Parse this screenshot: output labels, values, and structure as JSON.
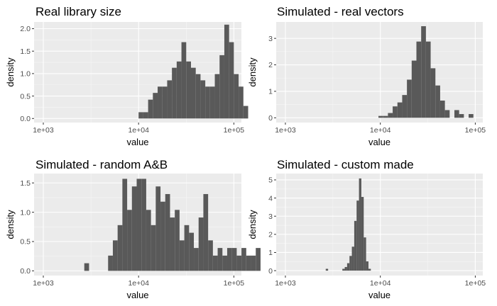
{
  "chart_data": [
    {
      "type": "histogram",
      "title": "Real library size",
      "xlabel": "value",
      "ylabel": "density",
      "x_scale": "log10",
      "xlim": [
        800,
        120000
      ],
      "x_ticks": [
        1000,
        10000,
        100000
      ],
      "x_tick_labels": [
        "1e+03",
        "1e+04",
        "1e+05"
      ],
      "ylim": [
        -0.09,
        2.15
      ],
      "y_ticks": [
        0.0,
        0.5,
        1.0,
        1.5,
        2.0
      ],
      "y_tick_labels": [
        "0.0",
        "0.5",
        "1.0",
        "1.5",
        "2.0"
      ],
      "bins": {
        "log10_start": 4.0,
        "log10_width": 0.05
      },
      "values": [
        0.14,
        0.14,
        0.42,
        0.57,
        0.71,
        0.71,
        0.85,
        1.13,
        1.27,
        1.7,
        1.27,
        1.13,
        0.99,
        0.85,
        0.71,
        0.71,
        0.99,
        1.41,
        2.09,
        1.7,
        0.99,
        0.71,
        0.28,
        0.0
      ]
    },
    {
      "type": "histogram",
      "title": "Simulated - real vectors",
      "xlabel": "value",
      "ylabel": "density",
      "x_scale": "log10",
      "xlim": [
        800,
        120000
      ],
      "x_ticks": [
        1000,
        10000,
        100000
      ],
      "x_tick_labels": [
        "1e+03",
        "1e+04",
        "1e+05"
      ],
      "ylim": [
        -0.18,
        3.62
      ],
      "y_ticks": [
        0,
        1,
        2,
        3
      ],
      "y_tick_labels": [
        "0",
        "1",
        "2",
        "3"
      ],
      "bins": {
        "log10_start": 3.98,
        "log10_width": 0.05
      },
      "values": [
        0.07,
        0.07,
        0.18,
        0.43,
        0.58,
        0.86,
        1.44,
        2.16,
        2.88,
        3.46,
        2.88,
        1.87,
        1.22,
        0.65,
        0.29,
        0.0,
        0.29,
        0.14,
        0.0,
        0.14
      ]
    },
    {
      "type": "histogram",
      "title": "Simulated - random A&B",
      "xlabel": "value",
      "ylabel": "density",
      "x_scale": "log10",
      "xlim": [
        800,
        120000
      ],
      "x_ticks": [
        1000,
        10000,
        100000
      ],
      "x_tick_labels": [
        "1e+03",
        "1e+04",
        "1e+05"
      ],
      "ylim": [
        -0.08,
        1.66
      ],
      "y_ticks": [
        0.0,
        0.5,
        1.0,
        1.5
      ],
      "y_tick_labels": [
        "0.0",
        "0.5",
        "1.0",
        "1.5"
      ],
      "bins": {
        "log10_start": 3.43,
        "log10_width": 0.05
      },
      "values": [
        0.13,
        0.0,
        0.0,
        0.0,
        0.0,
        0.26,
        0.52,
        0.78,
        1.57,
        1.04,
        1.44,
        1.57,
        1.57,
        1.04,
        0.78,
        1.44,
        1.18,
        1.31,
        0.91,
        1.04,
        0.52,
        0.78,
        0.65,
        0.39,
        0.91,
        1.31,
        0.52,
        0.26,
        0.39,
        0.26,
        0.39,
        0.39,
        0.26,
        0.39,
        0.26,
        0.26,
        0.39
      ]
    },
    {
      "type": "histogram",
      "title": "Simulated - custom made",
      "xlabel": "value",
      "ylabel": "density",
      "x_scale": "log10",
      "xlim": [
        800,
        120000
      ],
      "x_ticks": [
        1000,
        10000,
        100000
      ],
      "x_tick_labels": [
        "1e+03",
        "1e+04",
        "1e+05"
      ],
      "ylim": [
        -0.27,
        5.35
      ],
      "y_ticks": [
        0,
        1,
        2,
        3,
        4,
        5
      ],
      "y_tick_labels": [
        "0",
        "1",
        "2",
        "3",
        "4",
        "5"
      ],
      "bins": {
        "log10_start": 3.425,
        "log10_width": 0.025
      },
      "values": [
        0.1,
        0.0,
        0.0,
        0.0,
        0.0,
        0.0,
        0.0,
        0.1,
        0.2,
        0.41,
        0.81,
        1.32,
        2.74,
        3.86,
        5.08,
        4.06,
        1.83,
        0.51,
        0.1
      ]
    }
  ]
}
